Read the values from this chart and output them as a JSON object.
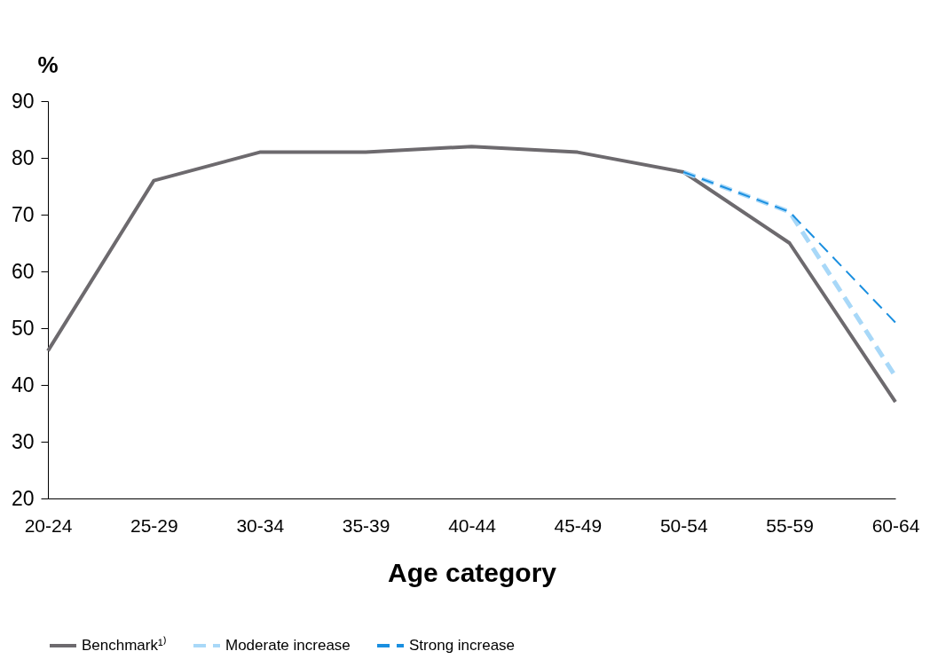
{
  "chart_data": {
    "type": "line",
    "xlabel": "Age category",
    "ylabel": "%",
    "categories": [
      "20-24",
      "25-29",
      "30-34",
      "35-39",
      "40-44",
      "45-49",
      "50-54",
      "55-59",
      "60-64"
    ],
    "ylim": [
      20,
      90
    ],
    "yticks": [
      20,
      30,
      40,
      50,
      60,
      70,
      80,
      90
    ],
    "grid": false,
    "legend": "bottom",
    "marker": "none",
    "series": [
      {
        "name": "Benchmark¹⁾",
        "color": "#6d6a6e",
        "line_style": "solid",
        "values": [
          46,
          76,
          81,
          81,
          82,
          81,
          77.5,
          65,
          37
        ]
      },
      {
        "name": "Moderate increase",
        "color": "#a8d8f8",
        "line_style": "dashed",
        "values": [
          null,
          null,
          null,
          null,
          null,
          null,
          77.5,
          70.5,
          41.5
        ]
      },
      {
        "name": "Strong increase",
        "color": "#1a8fe0",
        "line_style": "dashed",
        "values": [
          null,
          null,
          null,
          null,
          null,
          null,
          77.5,
          70.5,
          51
        ]
      }
    ]
  }
}
